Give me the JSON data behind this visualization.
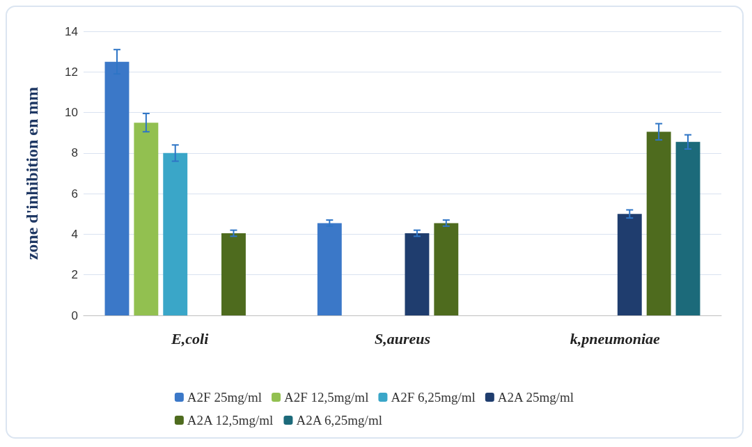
{
  "chart_data": {
    "type": "bar",
    "ylabel": "zone d'inhibition en mm",
    "categories": [
      "E,coli",
      "S,aureus",
      "k,pneumoniae"
    ],
    "series": [
      {
        "name": "A2F 25mg/ml",
        "color": "#3b78c8",
        "values": [
          12.5,
          4.55,
          null
        ],
        "errors": [
          0.6,
          0.15,
          null
        ]
      },
      {
        "name": "A2F 12,5mg/ml",
        "color": "#92c050",
        "values": [
          9.5,
          null,
          null
        ],
        "errors": [
          0.45,
          null,
          null
        ]
      },
      {
        "name": "A2F 6,25mg/ml",
        "color": "#3aa6c8",
        "values": [
          8,
          null,
          null
        ],
        "errors": [
          0.4,
          null,
          null
        ]
      },
      {
        "name": "A2A 25mg/ml",
        "color": "#1f3d6e",
        "values": [
          null,
          4.05,
          5.0
        ],
        "errors": [
          null,
          0.15,
          0.2
        ]
      },
      {
        "name": "A2A 12,5mg/ml",
        "color": "#4e6b1e",
        "values": [
          4.05,
          4.55,
          9.05
        ],
        "errors": [
          0.15,
          0.15,
          0.4
        ]
      },
      {
        "name": "A2A 6,25mg/ml",
        "color": "#1c6a7a",
        "values": [
          null,
          null,
          8.55
        ],
        "errors": [
          null,
          null,
          0.35
        ]
      }
    ],
    "ylim": [
      0,
      14
    ],
    "yticks": [
      0,
      2,
      4,
      6,
      8,
      10,
      12,
      14
    ],
    "grid": "y",
    "legend": "bottom"
  }
}
